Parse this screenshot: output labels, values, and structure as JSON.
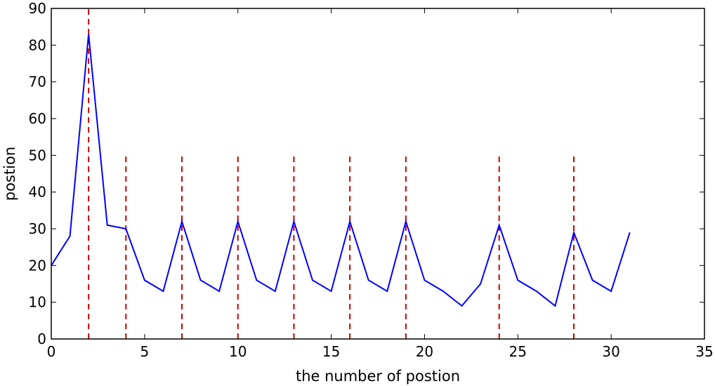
{
  "chart_data": {
    "type": "line",
    "title": "",
    "xlabel": "the number of postion",
    "ylabel": "postion",
    "xlim": [
      0,
      35
    ],
    "ylim": [
      0,
      90
    ],
    "xticks": [
      0,
      5,
      10,
      15,
      20,
      25,
      30,
      35
    ],
    "yticks": [
      0,
      10,
      20,
      30,
      40,
      50,
      60,
      70,
      80,
      90
    ],
    "grid": false,
    "series": [
      {
        "color": "#0000ff",
        "x": [
          0,
          1,
          2,
          3,
          4,
          5,
          6,
          7,
          8,
          9,
          10,
          11,
          12,
          13,
          14,
          15,
          16,
          17,
          18,
          19,
          20,
          21,
          22,
          23,
          24,
          25,
          26,
          27,
          28,
          29,
          30,
          31
        ],
        "y": [
          20,
          28,
          83,
          31,
          30,
          16,
          13,
          32,
          16,
          13,
          32,
          16,
          13,
          32,
          16,
          13,
          32,
          16,
          13,
          32,
          16,
          13,
          9,
          15,
          31,
          16,
          13,
          9,
          29,
          16,
          13,
          29
        ]
      }
    ],
    "markers": {
      "color": "#cc0000",
      "style": "dashed",
      "lines": [
        {
          "x": 2,
          "y_top": 90
        },
        {
          "x": 4,
          "y_top": 50
        },
        {
          "x": 7,
          "y_top": 50
        },
        {
          "x": 10,
          "y_top": 50
        },
        {
          "x": 13,
          "y_top": 50
        },
        {
          "x": 16,
          "y_top": 50
        },
        {
          "x": 19,
          "y_top": 50
        },
        {
          "x": 24,
          "y_top": 50
        },
        {
          "x": 28,
          "y_top": 50
        }
      ]
    }
  }
}
